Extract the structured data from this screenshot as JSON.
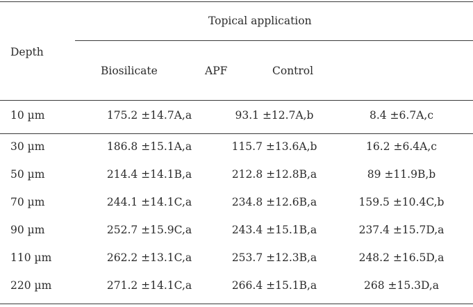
{
  "header": {
    "group_label": "Topical application",
    "depth_label": "Depth",
    "columns": [
      "Biosilicate",
      "APF",
      "Control"
    ]
  },
  "rows": [
    {
      "depth": "10 µm",
      "biosilicate": "175.2 ±14.7A,a",
      "apf": "93.1 ±12.7A,b",
      "control": "8.4 ±6.7A,c"
    },
    {
      "depth": "30 µm",
      "biosilicate": "186.8 ±15.1A,a",
      "apf": "115.7 ±13.6A,b",
      "control": "16.2 ±6.4A,c"
    },
    {
      "depth": "50 µm",
      "biosilicate": "214.4 ±14.1B,a",
      "apf": "212.8 ±12.8B,a",
      "control": "89 ±11.9B,b"
    },
    {
      "depth": "70 µm",
      "biosilicate": "244.1 ±14.1C,a",
      "apf": "234.8 ±12.6B,a",
      "control": "159.5 ±10.4C,b"
    },
    {
      "depth": "90 µm",
      "biosilicate": "252.7 ±15.9C,a",
      "apf": "243.4 ±15.1B,a",
      "control": "237.4 ±15.7D,a"
    },
    {
      "depth": "110 µm",
      "biosilicate": "262.2 ±13.1C,a",
      "apf": "253.7 ±12.3B,a",
      "control": "248.2 ±16.5D,a"
    },
    {
      "depth": "220 µm",
      "biosilicate": "271.2 ±14.1C,a",
      "apf": "266.4 ±15.1B,a",
      "control": "268 ±15.3D,a"
    }
  ]
}
